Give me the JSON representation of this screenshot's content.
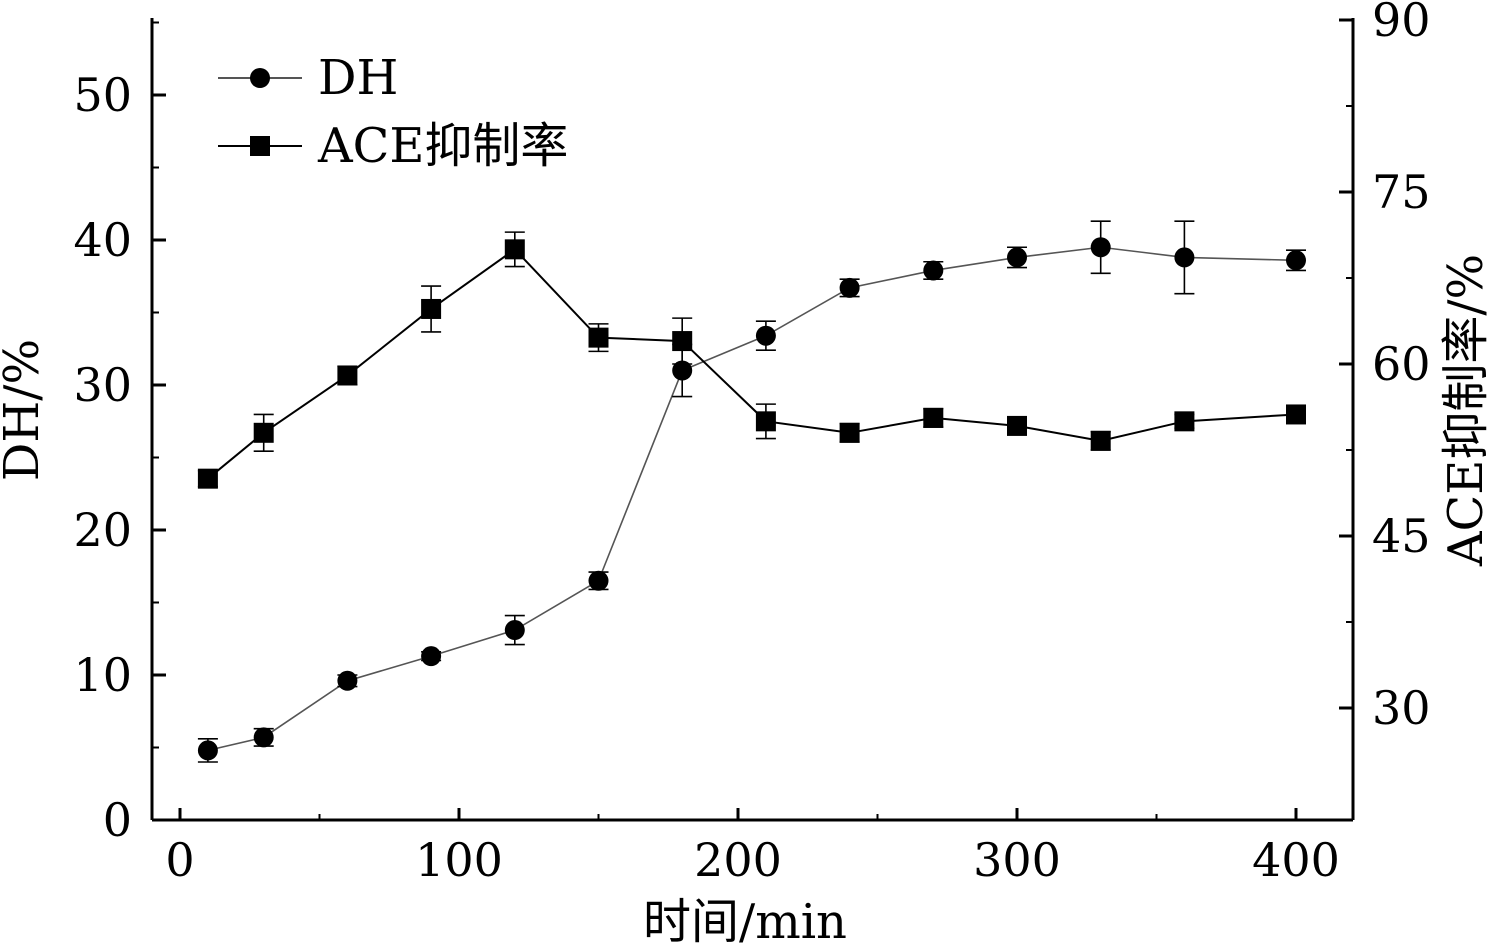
{
  "chart_data": {
    "type": "line",
    "xlabel": "时间/min",
    "ylabel_left": "DH/%",
    "ylabel_right": "ACE抑制率/%",
    "x_axis": {
      "ticks": [
        0,
        100,
        200,
        300,
        400
      ],
      "tick_labels": [
        "0",
        "100",
        "200",
        "300",
        "400"
      ]
    },
    "y_left_axis": {
      "ticks": [
        0,
        10,
        20,
        30,
        40,
        50
      ],
      "tick_labels": [
        "0",
        "10",
        "20",
        "30",
        "40",
        "50"
      ]
    },
    "y_right_axis": {
      "ticks": [
        30,
        45,
        60,
        75,
        90
      ],
      "tick_labels": [
        "30",
        "45",
        "60",
        "75",
        "90"
      ]
    },
    "legend_position": "top-left",
    "series": [
      {
        "name": "DH",
        "marker": "circle",
        "axis": "left",
        "x": [
          10,
          30,
          60,
          90,
          120,
          150,
          180,
          210,
          240,
          270,
          300,
          330,
          360,
          400
        ],
        "values": [
          4.8,
          5.7,
          9.6,
          11.3,
          13.1,
          16.5,
          31.0,
          33.4,
          36.7,
          37.9,
          38.8,
          39.5,
          38.8,
          38.6
        ],
        "errors": [
          0.8,
          0.6,
          0.4,
          0.3,
          1.0,
          0.6,
          1.8,
          1.0,
          0.6,
          0.6,
          0.7,
          1.8,
          2.5,
          0.7
        ]
      },
      {
        "name": "ACE抑制率",
        "marker": "square",
        "axis": "right",
        "x": [
          10,
          30,
          60,
          90,
          120,
          150,
          180,
          210,
          240,
          270,
          300,
          330,
          360,
          400
        ],
        "values": [
          50.0,
          54.0,
          59.0,
          64.8,
          70.0,
          62.3,
          62.0,
          55.0,
          54.0,
          55.3,
          54.6,
          53.3,
          55.0,
          55.6
        ],
        "errors": [
          0.7,
          1.6,
          0.8,
          2.0,
          1.5,
          1.2,
          2.0,
          1.5,
          0.8,
          0.8,
          0.7,
          0.8,
          0.6,
          0.6
        ]
      }
    ]
  }
}
